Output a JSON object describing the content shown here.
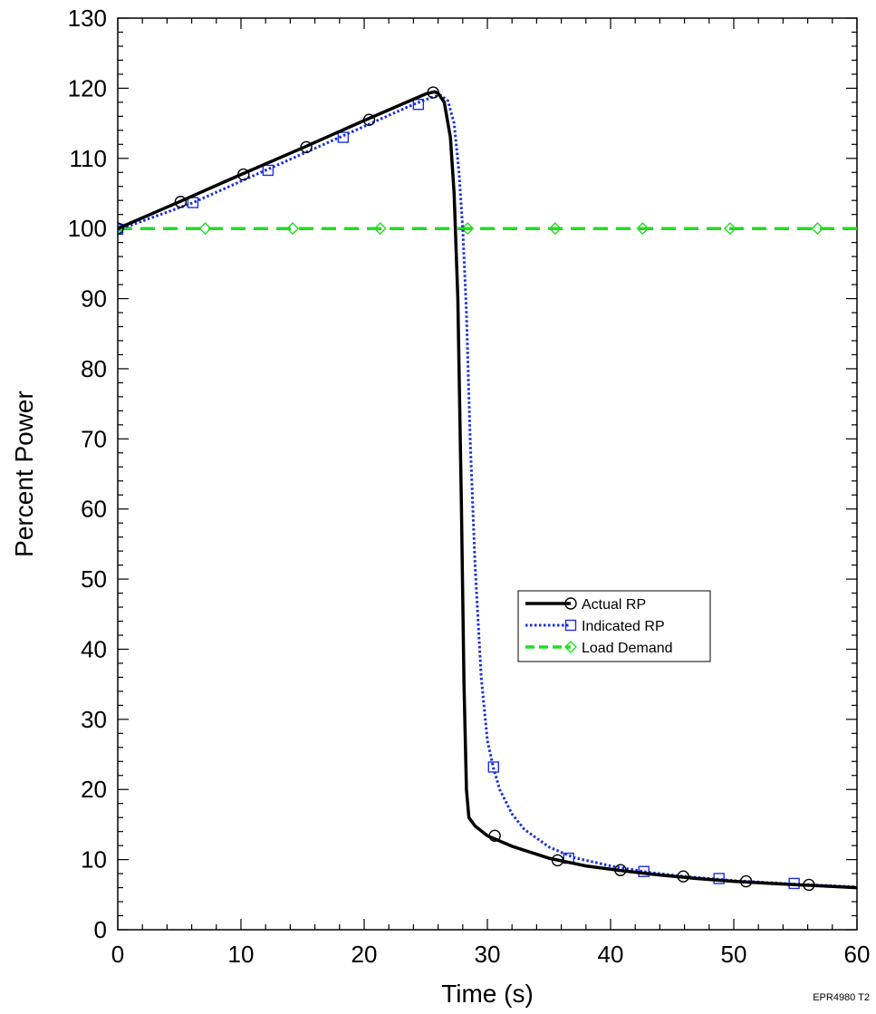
{
  "chart_data": {
    "type": "line",
    "xlabel": "Time (s)",
    "ylabel": "Percent Power",
    "xlim": [
      0,
      60
    ],
    "ylim": [
      0,
      130
    ],
    "x_ticks": [
      0,
      10,
      20,
      30,
      40,
      50,
      60
    ],
    "y_ticks": [
      0,
      10,
      20,
      30,
      40,
      50,
      60,
      70,
      80,
      90,
      100,
      110,
      120,
      130
    ],
    "grid": false,
    "legend_position": "center-right",
    "footnote": "EPR4980 T2",
    "series": [
      {
        "name": "Actual RP",
        "color": "#000000",
        "line_style": "solid",
        "marker": "circle",
        "points": [
          [
            0,
            100
          ],
          [
            5,
            103.8
          ],
          [
            10,
            107.7
          ],
          [
            15,
            111.5
          ],
          [
            20,
            115.4
          ],
          [
            25,
            119.2
          ],
          [
            25.7,
            119.5
          ],
          [
            26,
            119.3
          ],
          [
            26.5,
            118
          ],
          [
            27,
            113
          ],
          [
            27.3,
            105
          ],
          [
            27.6,
            90
          ],
          [
            27.9,
            60
          ],
          [
            28.1,
            35
          ],
          [
            28.3,
            20
          ],
          [
            28.5,
            16
          ],
          [
            29,
            14.8
          ],
          [
            30,
            13.4
          ],
          [
            32,
            11.9
          ],
          [
            35,
            10.2
          ],
          [
            38,
            9.1
          ],
          [
            41,
            8.4
          ],
          [
            44,
            7.8
          ],
          [
            47,
            7.3
          ],
          [
            50,
            6.9
          ],
          [
            53,
            6.6
          ],
          [
            56,
            6.35
          ],
          [
            60,
            6.0
          ]
        ],
        "marker_points": [
          [
            0,
            100
          ],
          [
            5.1,
            103.8
          ],
          [
            10.2,
            107.7
          ],
          [
            15.3,
            111.6
          ],
          [
            20.4,
            115.5
          ],
          [
            25.6,
            119.4
          ],
          [
            30.6,
            13.4
          ],
          [
            35.7,
            9.9
          ],
          [
            40.8,
            8.5
          ],
          [
            45.9,
            7.6
          ],
          [
            51,
            6.9
          ],
          [
            56.1,
            6.4
          ]
        ]
      },
      {
        "name": "Indicated RP",
        "color": "#1a2ee0",
        "line_style": "dotted",
        "marker": "square",
        "points": [
          [
            0,
            99.8
          ],
          [
            6,
            103.6
          ],
          [
            12,
            108.3
          ],
          [
            18,
            113
          ],
          [
            24,
            117.7
          ],
          [
            25.5,
            118.7
          ],
          [
            26.2,
            119
          ],
          [
            26.8,
            118.2
          ],
          [
            27.3,
            115
          ],
          [
            27.7,
            108
          ],
          [
            28,
            100
          ],
          [
            28.3,
            88
          ],
          [
            28.6,
            70
          ],
          [
            29,
            52
          ],
          [
            29.5,
            36
          ],
          [
            30,
            27
          ],
          [
            30.5,
            23
          ],
          [
            31,
            20
          ],
          [
            32,
            16.5
          ],
          [
            33,
            14.3
          ],
          [
            35,
            11.8
          ],
          [
            37,
            10.3
          ],
          [
            40,
            9.1
          ],
          [
            43,
            8.2
          ],
          [
            46,
            7.6
          ],
          [
            50,
            7
          ],
          [
            55,
            6.5
          ],
          [
            60,
            6.1
          ]
        ],
        "marker_points": [
          [
            0,
            99.9
          ],
          [
            6.1,
            103.7
          ],
          [
            12.2,
            108.3
          ],
          [
            18.3,
            113
          ],
          [
            24.4,
            117.7
          ],
          [
            30.5,
            23.2
          ],
          [
            36.6,
            10.2
          ],
          [
            42.7,
            8.3
          ],
          [
            48.8,
            7.3
          ],
          [
            54.9,
            6.6
          ]
        ]
      },
      {
        "name": "Load Demand",
        "color": "#22dd22",
        "line_style": "dashed",
        "marker": "diamond",
        "points": [
          [
            0,
            100
          ],
          [
            60,
            100
          ]
        ],
        "marker_points": [
          [
            0,
            100
          ],
          [
            7.1,
            100
          ],
          [
            14.2,
            100
          ],
          [
            21.3,
            100
          ],
          [
            28.4,
            100
          ],
          [
            35.5,
            100
          ],
          [
            42.6,
            100
          ],
          [
            49.7,
            100
          ],
          [
            56.8,
            100
          ]
        ]
      }
    ]
  }
}
